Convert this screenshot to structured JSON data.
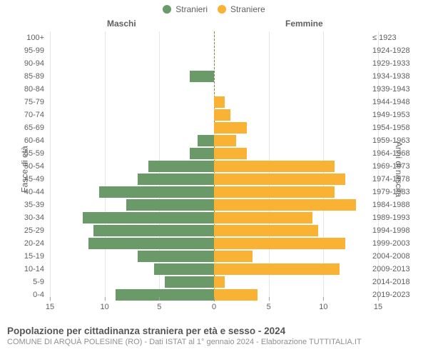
{
  "chart": {
    "type": "population-pyramid",
    "legend": {
      "male": {
        "label": "Stranieri",
        "color": "#6a9a67"
      },
      "female": {
        "label": "Straniere",
        "color": "#f9b233"
      }
    },
    "col_headers": {
      "left": "Maschi",
      "right": "Femmine"
    },
    "axis_titles": {
      "left": "Fasce di età",
      "right": "Anni di nascita"
    },
    "x_max": 15,
    "x_ticks": [
      15,
      10,
      5,
      0,
      5,
      10,
      15
    ],
    "grid_color": "#e6e6e6",
    "centerline_color": "#888842",
    "text_color": "#606060",
    "background_color": "#ffffff",
    "label_fontsize": 11,
    "header_fontsize": 12,
    "rows": [
      {
        "age": "100+",
        "birth": "≤ 1923",
        "m": 0,
        "f": 0
      },
      {
        "age": "95-99",
        "birth": "1924-1928",
        "m": 0,
        "f": 0
      },
      {
        "age": "90-94",
        "birth": "1929-1933",
        "m": 0,
        "f": 0
      },
      {
        "age": "85-89",
        "birth": "1934-1938",
        "m": 2.2,
        "f": 0
      },
      {
        "age": "80-84",
        "birth": "1939-1943",
        "m": 0,
        "f": 0
      },
      {
        "age": "75-79",
        "birth": "1944-1948",
        "m": 0,
        "f": 1
      },
      {
        "age": "70-74",
        "birth": "1949-1953",
        "m": 0,
        "f": 1.5
      },
      {
        "age": "65-69",
        "birth": "1954-1958",
        "m": 0,
        "f": 3
      },
      {
        "age": "60-64",
        "birth": "1959-1963",
        "m": 1.5,
        "f": 2
      },
      {
        "age": "55-59",
        "birth": "1964-1968",
        "m": 2.2,
        "f": 3
      },
      {
        "age": "50-54",
        "birth": "1969-1973",
        "m": 6,
        "f": 11
      },
      {
        "age": "45-49",
        "birth": "1974-1978",
        "m": 7,
        "f": 12
      },
      {
        "age": "40-44",
        "birth": "1979-1983",
        "m": 10.5,
        "f": 11
      },
      {
        "age": "35-39",
        "birth": "1984-1988",
        "m": 8,
        "f": 13
      },
      {
        "age": "30-34",
        "birth": "1989-1993",
        "m": 12,
        "f": 9
      },
      {
        "age": "25-29",
        "birth": "1994-1998",
        "m": 11,
        "f": 9.5
      },
      {
        "age": "20-24",
        "birth": "1999-2003",
        "m": 11.5,
        "f": 12
      },
      {
        "age": "15-19",
        "birth": "2004-2008",
        "m": 7,
        "f": 3.5
      },
      {
        "age": "10-14",
        "birth": "2009-2013",
        "m": 5.5,
        "f": 11.5
      },
      {
        "age": "5-9",
        "birth": "2014-2018",
        "m": 4.5,
        "f": 1
      },
      {
        "age": "0-4",
        "birth": "2019-2023",
        "m": 9,
        "f": 4
      }
    ]
  },
  "footer": {
    "title": "Popolazione per cittadinanza straniera per età e sesso - 2024",
    "subtitle": "COMUNE DI ARQUÀ POLESINE (RO) - Dati ISTAT al 1° gennaio 2024 - Elaborazione TUTTITALIA.IT"
  }
}
